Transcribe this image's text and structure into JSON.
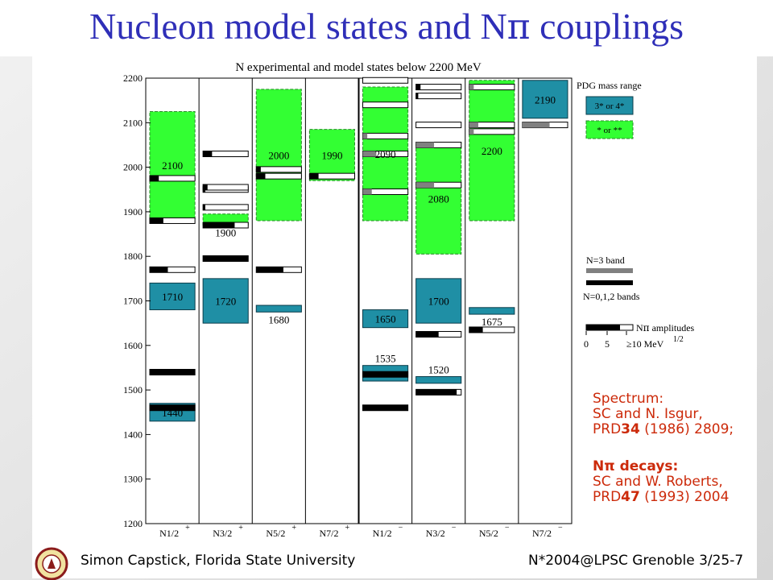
{
  "slide": {
    "title_prefix": "Nucleon model states and N",
    "title_pi": "π",
    "title_suffix": " couplings",
    "footer_left": "Simon Capstick, Florida State University",
    "footer_right": "N*2004@LPSC Grenoble 3/25-7",
    "seal_text": "FLORIDA STATE UNIVERSITY"
  },
  "colors": {
    "title": "#2f2fb8",
    "pdg34": "#1f8fa5",
    "pdg12": "#33ff33",
    "gray_band": "#808080",
    "black_band": "#000000",
    "refs": "#cc2a0a"
  },
  "references": {
    "spectrum": [
      "Spectrum:",
      "SC and N. Isgur,",
      "PRD",
      "34",
      " (1986) 2809;"
    ],
    "decays": [
      "Nπ decays:",
      "SC and W. Roberts,",
      "PRD",
      "47",
      " (1993) 2004"
    ]
  },
  "chart_data": {
    "type": "level-diagram",
    "title": "N experimental and model states below 2200 MeV",
    "ylabel": "",
    "ylim": [
      1200,
      2200
    ],
    "yticks": [
      1200,
      1300,
      1400,
      1500,
      1600,
      1700,
      1800,
      1900,
      2000,
      2100,
      2200
    ],
    "columns": [
      {
        "base": "N1/2",
        "sup": "+"
      },
      {
        "base": "N3/2",
        "sup": "+"
      },
      {
        "base": "N5/2",
        "sup": "+"
      },
      {
        "base": "N7/2",
        "sup": "+"
      },
      {
        "base": "N1/2",
        "sup": "−"
      },
      {
        "base": "N3/2",
        "sup": "−"
      },
      {
        "base": "N5/2",
        "sup": "−"
      },
      {
        "base": "N7/2",
        "sup": "−"
      }
    ],
    "pdg_states": [
      {
        "col": 0,
        "label": "1440",
        "mass": 1440,
        "low": 1430,
        "high": 1470,
        "rating": "3* or 4*",
        "label_pos": "inside"
      },
      {
        "col": 0,
        "label": "1710",
        "mass": 1710,
        "low": 1680,
        "high": 1740,
        "rating": "3* or 4*",
        "label_pos": "inside"
      },
      {
        "col": 0,
        "label": "2100",
        "mass": 2100,
        "low": 1885,
        "high": 2125,
        "rating": "* or **",
        "label_pos": "inside"
      },
      {
        "col": 1,
        "label": "1720",
        "mass": 1720,
        "low": 1650,
        "high": 1750,
        "rating": "3* or 4*",
        "label_pos": "inside"
      },
      {
        "col": 1,
        "label": "1900",
        "mass": 1900,
        "low": 1870,
        "high": 1895,
        "rating": "* or **",
        "label_pos": "below"
      },
      {
        "col": 2,
        "label": "1680",
        "mass": 1680,
        "low": 1675,
        "high": 1690,
        "rating": "3* or 4*",
        "label_pos": "below"
      },
      {
        "col": 2,
        "label": "2000",
        "mass": 2000,
        "low": 1880,
        "high": 2175,
        "rating": "* or **",
        "label_pos": "inside"
      },
      {
        "col": 3,
        "label": "1990",
        "mass": 1990,
        "low": 1970,
        "high": 2085,
        "rating": "* or **",
        "label_pos": "inside"
      },
      {
        "col": 4,
        "label": "1535",
        "mass": 1535,
        "low": 1520,
        "high": 1555,
        "rating": "3* or 4*",
        "label_pos": "above"
      },
      {
        "col": 4,
        "label": "1650",
        "mass": 1650,
        "low": 1640,
        "high": 1680,
        "rating": "3* or 4*",
        "label_pos": "inside"
      },
      {
        "col": 4,
        "label": "2090",
        "mass": 2090,
        "low": 1880,
        "high": 2180,
        "rating": "* or **",
        "label_pos": "inside"
      },
      {
        "col": 5,
        "label": "1520",
        "mass": 1520,
        "low": 1515,
        "high": 1530,
        "rating": "3* or 4*",
        "label_pos": "above"
      },
      {
        "col": 5,
        "label": "1700",
        "mass": 1700,
        "low": 1650,
        "high": 1750,
        "rating": "3* or 4*",
        "label_pos": "inside"
      },
      {
        "col": 5,
        "label": "2080",
        "mass": 2080,
        "low": 1805,
        "high": 2055,
        "rating": "* or **",
        "label_pos": "inside"
      },
      {
        "col": 6,
        "label": "1675",
        "mass": 1675,
        "low": 1670,
        "high": 1685,
        "rating": "3* or 4*",
        "label_pos": "below"
      },
      {
        "col": 6,
        "label": "2200",
        "mass": 2200,
        "low": 1880,
        "high": 2195,
        "rating": "* or **",
        "label_pos": "inside"
      },
      {
        "col": 7,
        "label": "2190",
        "mass": 2190,
        "low": 2110,
        "high": 2195,
        "rating": "3* or 4*",
        "label_pos": "inside"
      }
    ],
    "model_states": [
      {
        "col": 0,
        "mass": 1460,
        "amp": 10
      },
      {
        "col": 0,
        "mass": 1540,
        "amp": 10
      },
      {
        "col": 0,
        "mass": 1770,
        "amp": 4
      },
      {
        "col": 0,
        "mass": 1880,
        "amp": 3
      },
      {
        "col": 0,
        "mass": 1975,
        "amp": 2
      },
      {
        "col": 1,
        "mass": 1795,
        "amp": 10
      },
      {
        "col": 1,
        "mass": 1870,
        "amp": 7
      },
      {
        "col": 1,
        "mass": 1910,
        "amp": 0.5
      },
      {
        "col": 1,
        "mass": 1950,
        "amp": 0.5
      },
      {
        "col": 1,
        "mass": 1955,
        "amp": 1
      },
      {
        "col": 1,
        "mass": 2030,
        "amp": 2
      },
      {
        "col": 2,
        "mass": 1770,
        "amp": 6
      },
      {
        "col": 2,
        "mass": 1980,
        "amp": 2
      },
      {
        "col": 2,
        "mass": 1995,
        "amp": 1
      },
      {
        "col": 3,
        "mass": 1980,
        "amp": 2
      },
      {
        "col": 4,
        "mass": 1460,
        "amp": 10
      },
      {
        "col": 4,
        "mass": 1535,
        "amp": 10
      },
      {
        "col": 4,
        "mass": 1945,
        "amp": 2,
        "band": "N=3"
      },
      {
        "col": 4,
        "mass": 2030,
        "amp": 3,
        "band": "N=3"
      },
      {
        "col": 4,
        "mass": 2070,
        "amp": 1,
        "band": "N=3"
      },
      {
        "col": 4,
        "mass": 2140,
        "amp": 0
      },
      {
        "col": 4,
        "mass": 2195,
        "amp": 0
      },
      {
        "col": 5,
        "mass": 1495,
        "amp": 9
      },
      {
        "col": 5,
        "mass": 1625,
        "amp": 5
      },
      {
        "col": 5,
        "mass": 1960,
        "amp": 4,
        "band": "N=3"
      },
      {
        "col": 5,
        "mass": 2050,
        "amp": 4,
        "band": "N=3"
      },
      {
        "col": 5,
        "mass": 2095,
        "amp": 0
      },
      {
        "col": 5,
        "mass": 2160,
        "amp": 0.5
      },
      {
        "col": 5,
        "mass": 2180,
        "amp": 1
      },
      {
        "col": 6,
        "mass": 1635,
        "amp": 3
      },
      {
        "col": 6,
        "mass": 2080,
        "amp": 1,
        "band": "N=3"
      },
      {
        "col": 6,
        "mass": 2095,
        "amp": 2,
        "band": "N=3"
      },
      {
        "col": 6,
        "mass": 2180,
        "amp": 1,
        "band": "N=3"
      },
      {
        "col": 7,
        "mass": 2095,
        "amp": 6,
        "band": "N=3"
      }
    ],
    "legend": {
      "pdg_title": "PDG mass range",
      "pdg_34": "3* or 4*",
      "pdg_12": "* or **",
      "n3_label": "N=3 band",
      "n012_label": "N=0,1,2 bands",
      "amp_label_prefix": "N",
      "amp_label_pi": "π",
      "amp_label_suffix": " amplitudes",
      "amp_ticks": [
        "0",
        "5",
        "≥10 MeV"
      ],
      "amp_unit_sup": "1/2"
    }
  }
}
